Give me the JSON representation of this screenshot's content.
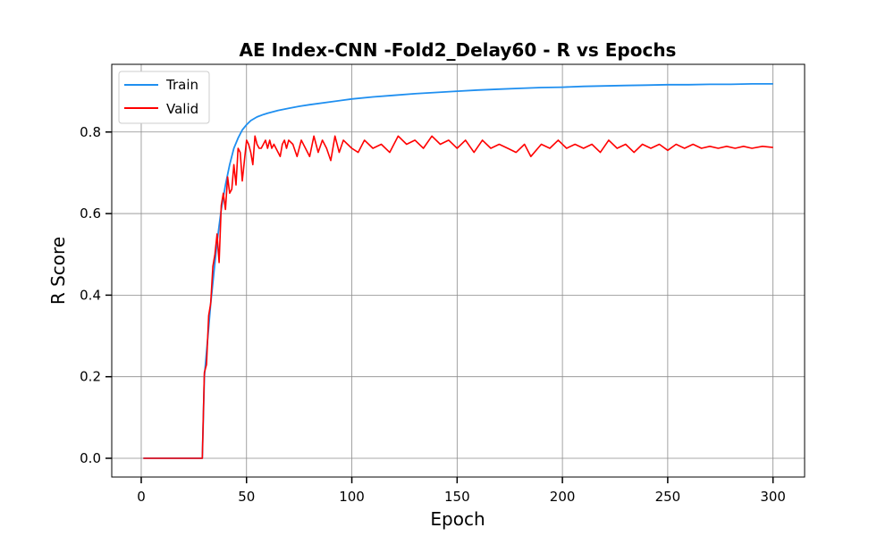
{
  "chart_data": {
    "type": "line",
    "title": "AE Index-CNN -Fold2_Delay60 - R vs Epochs",
    "xlabel": "Epoch",
    "ylabel": "R Score",
    "xlim": [
      -14,
      315
    ],
    "ylim": [
      -0.046,
      0.966
    ],
    "xticks": [
      0,
      50,
      100,
      150,
      200,
      250,
      300
    ],
    "yticks": [
      0.0,
      0.2,
      0.4,
      0.6,
      0.8
    ],
    "ytick_labels": [
      "0.0",
      "0.2",
      "0.4",
      "0.6",
      "0.8"
    ],
    "grid": true,
    "legend_position": "upper-left",
    "series": [
      {
        "name": "Train",
        "color": "#1f8ff0",
        "x": [
          1,
          28,
          29,
          30,
          31,
          32,
          33,
          34,
          35,
          36,
          37,
          38,
          39,
          40,
          42,
          44,
          46,
          48,
          50,
          52,
          55,
          58,
          60,
          65,
          70,
          75,
          80,
          90,
          100,
          110,
          120,
          130,
          140,
          150,
          160,
          170,
          180,
          190,
          200,
          210,
          220,
          230,
          240,
          250,
          260,
          270,
          280,
          290,
          300
        ],
        "y": [
          0.0,
          0.0,
          0.0,
          0.2,
          0.26,
          0.32,
          0.38,
          0.43,
          0.48,
          0.53,
          0.57,
          0.61,
          0.64,
          0.67,
          0.72,
          0.76,
          0.785,
          0.805,
          0.818,
          0.828,
          0.837,
          0.843,
          0.846,
          0.853,
          0.858,
          0.863,
          0.867,
          0.874,
          0.881,
          0.886,
          0.89,
          0.894,
          0.897,
          0.9,
          0.903,
          0.905,
          0.907,
          0.909,
          0.91,
          0.912,
          0.913,
          0.914,
          0.915,
          0.916,
          0.916,
          0.917,
          0.917,
          0.918,
          0.918
        ]
      },
      {
        "name": "Valid",
        "color": "#ff0000",
        "x": [
          1,
          28,
          29,
          30,
          31,
          32,
          33,
          34,
          35,
          36,
          37,
          38,
          39,
          40,
          41,
          42,
          43,
          44,
          45,
          46,
          47,
          48,
          49,
          50,
          51,
          52,
          53,
          54,
          55,
          56,
          57,
          58,
          59,
          60,
          61,
          62,
          63,
          64,
          65,
          66,
          67,
          68,
          69,
          70,
          72,
          74,
          76,
          78,
          80,
          82,
          84,
          86,
          88,
          90,
          92,
          94,
          96,
          98,
          100,
          103,
          106,
          110,
          114,
          118,
          122,
          126,
          130,
          134,
          138,
          142,
          146,
          150,
          154,
          158,
          162,
          166,
          170,
          174,
          178,
          182,
          185,
          190,
          194,
          198,
          202,
          206,
          210,
          214,
          218,
          222,
          226,
          230,
          234,
          238,
          242,
          246,
          250,
          254,
          258,
          262,
          266,
          270,
          274,
          278,
          282,
          286,
          290,
          295,
          300
        ],
        "y": [
          0.0,
          0.0,
          0.0,
          0.21,
          0.23,
          0.35,
          0.38,
          0.47,
          0.5,
          0.55,
          0.48,
          0.62,
          0.65,
          0.61,
          0.69,
          0.65,
          0.66,
          0.72,
          0.67,
          0.76,
          0.75,
          0.68,
          0.73,
          0.78,
          0.77,
          0.75,
          0.72,
          0.79,
          0.77,
          0.76,
          0.76,
          0.77,
          0.78,
          0.76,
          0.78,
          0.76,
          0.77,
          0.76,
          0.75,
          0.74,
          0.77,
          0.78,
          0.76,
          0.78,
          0.77,
          0.74,
          0.78,
          0.76,
          0.74,
          0.79,
          0.75,
          0.78,
          0.76,
          0.73,
          0.79,
          0.75,
          0.78,
          0.77,
          0.76,
          0.75,
          0.78,
          0.76,
          0.77,
          0.75,
          0.79,
          0.77,
          0.78,
          0.76,
          0.79,
          0.77,
          0.78,
          0.76,
          0.78,
          0.75,
          0.78,
          0.76,
          0.77,
          0.76,
          0.75,
          0.77,
          0.74,
          0.77,
          0.76,
          0.78,
          0.76,
          0.77,
          0.76,
          0.77,
          0.75,
          0.78,
          0.76,
          0.77,
          0.75,
          0.77,
          0.76,
          0.77,
          0.755,
          0.77,
          0.76,
          0.77,
          0.76,
          0.765,
          0.76,
          0.765,
          0.76,
          0.765,
          0.76,
          0.765,
          0.762
        ]
      }
    ]
  }
}
